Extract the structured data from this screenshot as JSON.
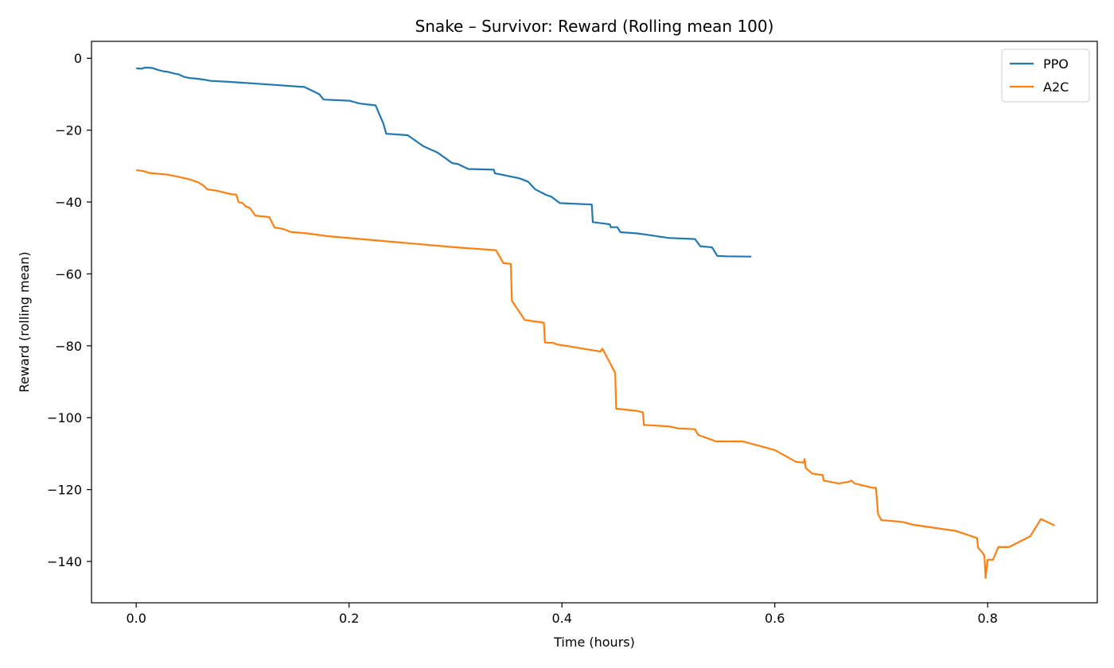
{
  "chart_data": {
    "type": "line",
    "title": "Snake – Survivor: Reward (Rolling mean 100)",
    "xlabel": "Time (hours)",
    "ylabel": "Reward (rolling mean)",
    "xlim": [
      -0.042,
      0.903
    ],
    "ylim": [
      -151.5,
      4.7
    ],
    "xticks": [
      0.0,
      0.2,
      0.4,
      0.6,
      0.8
    ],
    "xtick_labels": [
      "0.0",
      "0.2",
      "0.4",
      "0.6",
      "0.8"
    ],
    "yticks": [
      0,
      -20,
      -40,
      -60,
      -80,
      -100,
      -120,
      -140
    ],
    "ytick_labels": [
      "0",
      "−20",
      "−40",
      "−60",
      "−80",
      "−100",
      "−120",
      "−140"
    ],
    "grid": false,
    "legend_position": "top-right",
    "series": [
      {
        "name": "PPO",
        "color": "#1f77b4",
        "points": [
          [
            0.0,
            -2.8
          ],
          [
            0.005,
            -2.9
          ],
          [
            0.008,
            -2.6
          ],
          [
            0.015,
            -2.7
          ],
          [
            0.02,
            -3.2
          ],
          [
            0.025,
            -3.6
          ],
          [
            0.03,
            -3.8
          ],
          [
            0.035,
            -4.2
          ],
          [
            0.04,
            -4.5
          ],
          [
            0.045,
            -5.2
          ],
          [
            0.05,
            -5.5
          ],
          [
            0.055,
            -5.6
          ],
          [
            0.06,
            -5.8
          ],
          [
            0.065,
            -6.0
          ],
          [
            0.07,
            -6.3
          ],
          [
            0.09,
            -6.6
          ],
          [
            0.12,
            -7.2
          ],
          [
            0.158,
            -8.0
          ],
          [
            0.165,
            -9.0
          ],
          [
            0.172,
            -10.0
          ],
          [
            0.176,
            -11.5
          ],
          [
            0.2,
            -11.8
          ],
          [
            0.21,
            -12.6
          ],
          [
            0.225,
            -13.1
          ],
          [
            0.229,
            -16.0
          ],
          [
            0.232,
            -18.0
          ],
          [
            0.235,
            -21.0
          ],
          [
            0.255,
            -21.4
          ],
          [
            0.27,
            -24.5
          ],
          [
            0.283,
            -26.2
          ],
          [
            0.297,
            -29.2
          ],
          [
            0.302,
            -29.4
          ],
          [
            0.312,
            -30.8
          ],
          [
            0.336,
            -31.0
          ],
          [
            0.337,
            -32.0
          ],
          [
            0.36,
            -33.4
          ],
          [
            0.368,
            -34.3
          ],
          [
            0.375,
            -36.5
          ],
          [
            0.385,
            -38.0
          ],
          [
            0.39,
            -38.5
          ],
          [
            0.398,
            -40.3
          ],
          [
            0.428,
            -40.7
          ],
          [
            0.429,
            -45.6
          ],
          [
            0.44,
            -46.0
          ],
          [
            0.445,
            -46.2
          ],
          [
            0.446,
            -47.0
          ],
          [
            0.452,
            -47.0
          ],
          [
            0.455,
            -48.4
          ],
          [
            0.47,
            -48.7
          ],
          [
            0.48,
            -49.1
          ],
          [
            0.5,
            -50.0
          ],
          [
            0.525,
            -50.3
          ],
          [
            0.53,
            -52.3
          ],
          [
            0.541,
            -52.6
          ],
          [
            0.546,
            -55.0
          ],
          [
            0.555,
            -55.1
          ],
          [
            0.578,
            -55.2
          ]
        ]
      },
      {
        "name": "A2C",
        "color": "#ff7f0e",
        "points": [
          [
            0.0,
            -31.1
          ],
          [
            0.008,
            -31.5
          ],
          [
            0.012,
            -31.9
          ],
          [
            0.03,
            -32.4
          ],
          [
            0.04,
            -33.0
          ],
          [
            0.05,
            -33.7
          ],
          [
            0.058,
            -34.5
          ],
          [
            0.063,
            -35.4
          ],
          [
            0.067,
            -36.5
          ],
          [
            0.075,
            -36.8
          ],
          [
            0.09,
            -37.9
          ],
          [
            0.094,
            -37.9
          ],
          [
            0.096,
            -40.0
          ],
          [
            0.1,
            -40.3
          ],
          [
            0.103,
            -41.2
          ],
          [
            0.107,
            -41.7
          ],
          [
            0.112,
            -43.8
          ],
          [
            0.125,
            -44.2
          ],
          [
            0.13,
            -47.1
          ],
          [
            0.138,
            -47.5
          ],
          [
            0.145,
            -48.3
          ],
          [
            0.16,
            -48.7
          ],
          [
            0.18,
            -49.5
          ],
          [
            0.25,
            -51.3
          ],
          [
            0.3,
            -52.6
          ],
          [
            0.338,
            -53.4
          ],
          [
            0.345,
            -57.0
          ],
          [
            0.352,
            -57.2
          ],
          [
            0.353,
            -67.5
          ],
          [
            0.365,
            -72.8
          ],
          [
            0.383,
            -73.6
          ],
          [
            0.384,
            -79.1
          ],
          [
            0.392,
            -79.2
          ],
          [
            0.395,
            -79.6
          ],
          [
            0.41,
            -80.3
          ],
          [
            0.43,
            -81.3
          ],
          [
            0.436,
            -81.6
          ],
          [
            0.438,
            -80.8
          ],
          [
            0.45,
            -87.5
          ],
          [
            0.451,
            -97.5
          ],
          [
            0.47,
            -98.1
          ],
          [
            0.476,
            -98.5
          ],
          [
            0.477,
            -102.0
          ],
          [
            0.5,
            -102.4
          ],
          [
            0.51,
            -103.0
          ],
          [
            0.525,
            -103.2
          ],
          [
            0.528,
            -104.8
          ],
          [
            0.545,
            -106.6
          ],
          [
            0.57,
            -106.6
          ],
          [
            0.6,
            -109.0
          ],
          [
            0.62,
            -112.3
          ],
          [
            0.627,
            -112.5
          ],
          [
            0.628,
            -111.5
          ],
          [
            0.629,
            -114.0
          ],
          [
            0.635,
            -115.5
          ],
          [
            0.645,
            -116.0
          ],
          [
            0.646,
            -117.5
          ],
          [
            0.66,
            -118.3
          ],
          [
            0.67,
            -117.8
          ],
          [
            0.672,
            -117.5
          ],
          [
            0.675,
            -118.3
          ],
          [
            0.692,
            -119.5
          ],
          [
            0.695,
            -119.5
          ],
          [
            0.697,
            -126.8
          ],
          [
            0.7,
            -128.5
          ],
          [
            0.72,
            -129.0
          ],
          [
            0.73,
            -129.8
          ],
          [
            0.77,
            -131.5
          ],
          [
            0.79,
            -133.5
          ],
          [
            0.791,
            -136.2
          ],
          [
            0.795,
            -137.5
          ],
          [
            0.797,
            -138.5
          ],
          [
            0.798,
            -144.6
          ],
          [
            0.8,
            -139.5
          ],
          [
            0.805,
            -139.5
          ],
          [
            0.81,
            -136.0
          ],
          [
            0.82,
            -136.0
          ],
          [
            0.84,
            -133.0
          ],
          [
            0.85,
            -128.2
          ],
          [
            0.863,
            -130.0
          ]
        ]
      }
    ]
  }
}
